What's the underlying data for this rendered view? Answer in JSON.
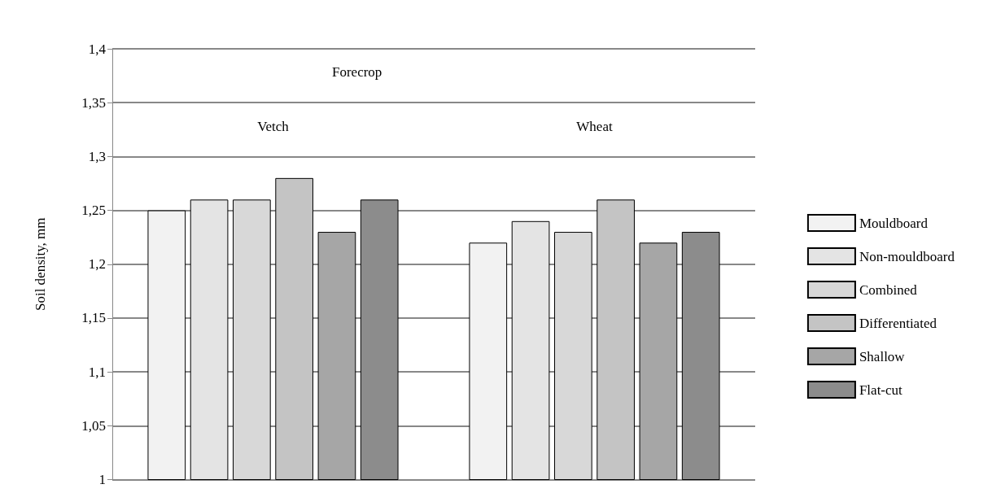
{
  "chart_data": {
    "type": "bar",
    "ylabel": "Soil density, mm",
    "categories": [
      "Vetch",
      "Wheat"
    ],
    "annotations": [
      "Forecrop"
    ],
    "series": [
      {
        "name": "Mouldboard",
        "color": "#f2f2f2",
        "values": [
          1.25,
          1.22
        ]
      },
      {
        "name": "Non-mouldboard",
        "color": "#e4e4e4",
        "values": [
          1.26,
          1.24
        ]
      },
      {
        "name": "Combined",
        "color": "#d8d8d8",
        "values": [
          1.26,
          1.23
        ]
      },
      {
        "name": "Differentiated",
        "color": "#c4c4c4",
        "values": [
          1.28,
          1.26
        ]
      },
      {
        "name": "Shallow",
        "color": "#a6a6a6",
        "values": [
          1.23,
          1.22
        ]
      },
      {
        "name": "Flat-cut",
        "color": "#8c8c8c",
        "values": [
          1.26,
          1.23
        ]
      }
    ],
    "ylim": [
      1,
      1.4
    ],
    "yticks": [
      {
        "value": 1,
        "label": "1"
      },
      {
        "value": 1.05,
        "label": "1,05"
      },
      {
        "value": 1.1,
        "label": "1,1"
      },
      {
        "value": 1.15,
        "label": "1,15"
      },
      {
        "value": 1.2,
        "label": "1,2"
      },
      {
        "value": 1.25,
        "label": "1,25"
      },
      {
        "value": 1.3,
        "label": "1,3"
      },
      {
        "value": 1.35,
        "label": "1,35"
      },
      {
        "value": 1.4,
        "label": "1,4"
      }
    ],
    "grid": "y",
    "legend": "right"
  }
}
